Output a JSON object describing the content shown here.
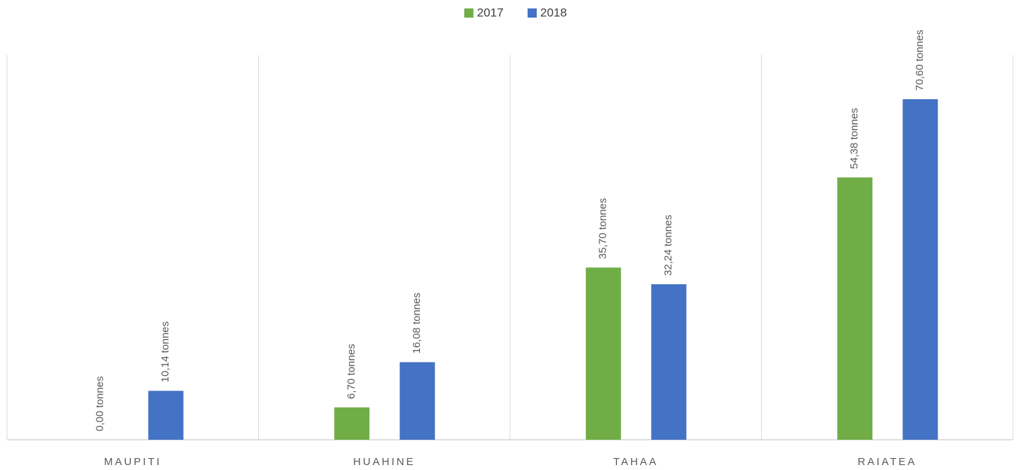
{
  "chart_data": {
    "type": "bar",
    "categories": [
      "MAUPITI",
      "HUAHINE",
      "TAHAA",
      "RAIATEA"
    ],
    "series": [
      {
        "name": "2017",
        "color": "#70ad47",
        "values": [
          0,
          6.7,
          35.7,
          54.38
        ],
        "value_labels": [
          "0,00 tonnes",
          "6,70 tonnes",
          "35,70 tonnes",
          "54,38 tonnes"
        ]
      },
      {
        "name": "2018",
        "color": "#4472c4",
        "values": [
          10.14,
          16.08,
          32.24,
          70.6
        ],
        "value_labels": [
          "10,14 tonnes",
          "16,08 tonnes",
          "32,24 tonnes",
          "70,60 tonnes"
        ]
      }
    ],
    "legend": "top"
  }
}
